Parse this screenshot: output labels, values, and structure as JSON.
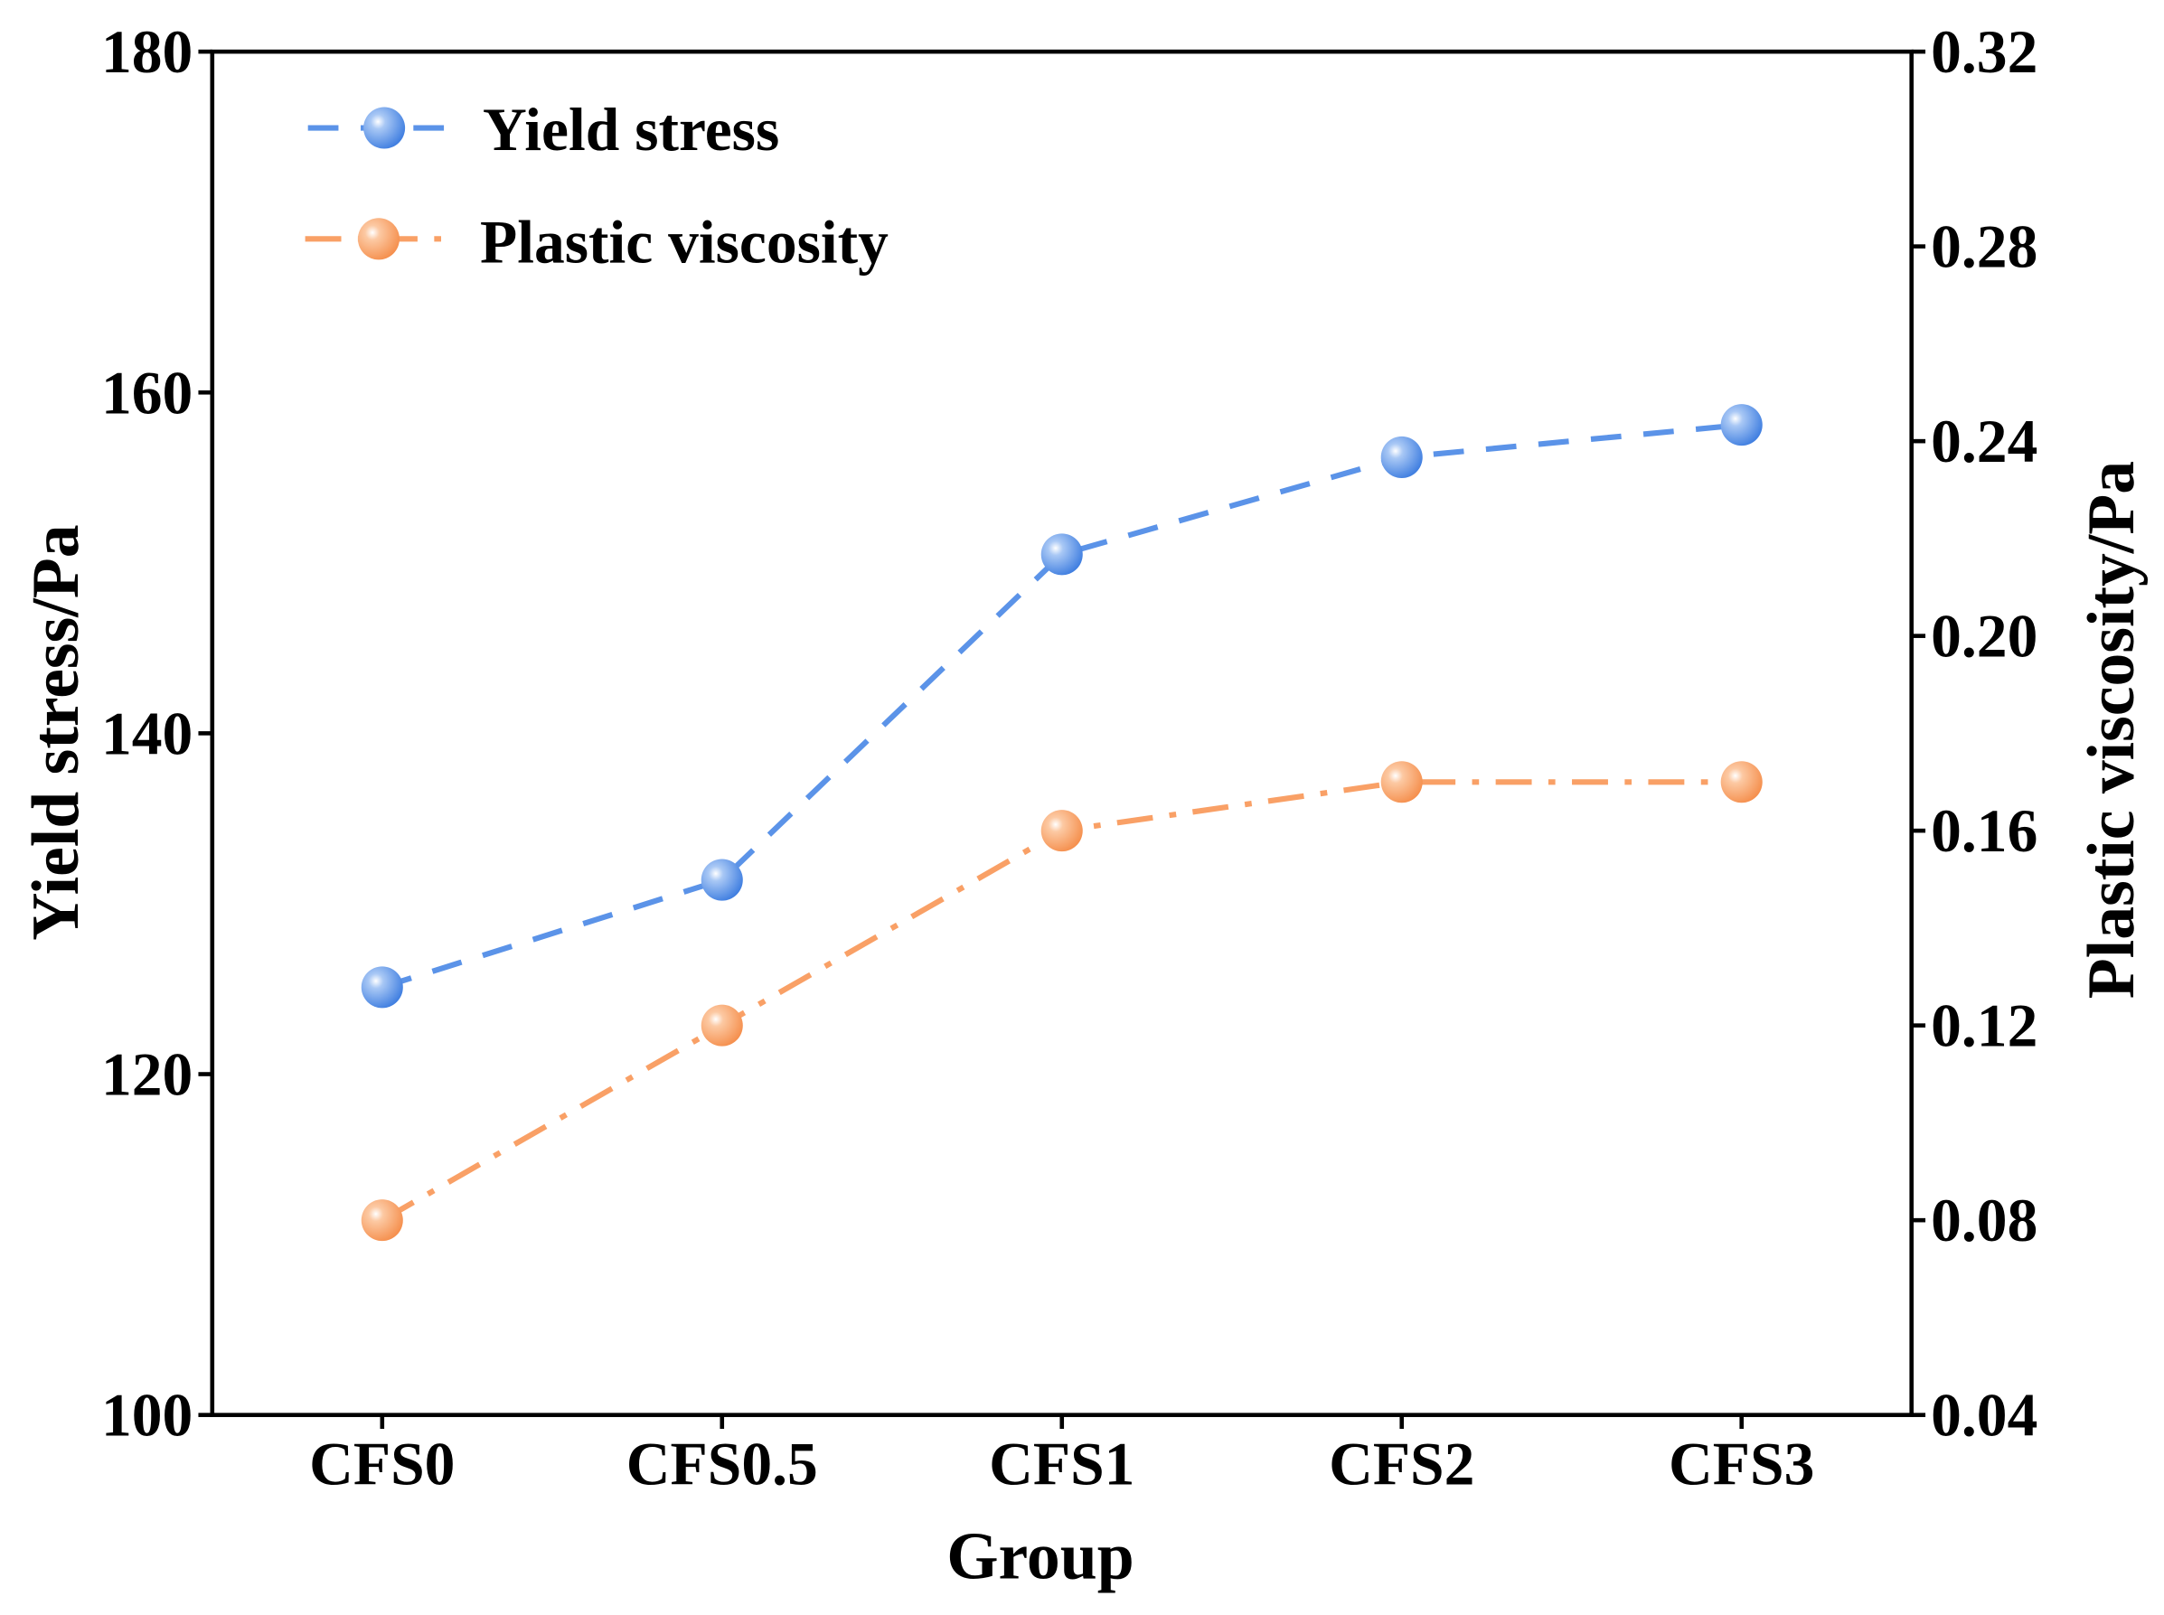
{
  "chart_data": {
    "type": "line",
    "categories": [
      "CFS0",
      "CFS0.5",
      "CFS1",
      "CFS2",
      "CFS3"
    ],
    "xlabel": "Group",
    "ylabel": "Yield stress/Pa",
    "y2label": "Plastic viscosity/Pa",
    "ylim": [
      100,
      180
    ],
    "y2lim": [
      0.04,
      0.32
    ],
    "yticks": [
      "100",
      "120",
      "140",
      "160",
      "180"
    ],
    "y2ticks": [
      "0.04",
      "0.08",
      "0.12",
      "0.16",
      "0.20",
      "0.24",
      "0.28",
      "0.32"
    ],
    "legend_position": "top-left",
    "grid": false,
    "series": [
      {
        "name": "Yield stress",
        "axis": "left",
        "values": [
          125.1,
          131.4,
          150.5,
          156.2,
          158.1
        ],
        "color": "#5B93E8",
        "dash": "dashed"
      },
      {
        "name": "Plastic viscosity",
        "axis": "right",
        "values": [
          0.08,
          0.12,
          0.16,
          0.17,
          0.17
        ],
        "color": "#F9A066",
        "dash": "dash-dot"
      }
    ]
  }
}
